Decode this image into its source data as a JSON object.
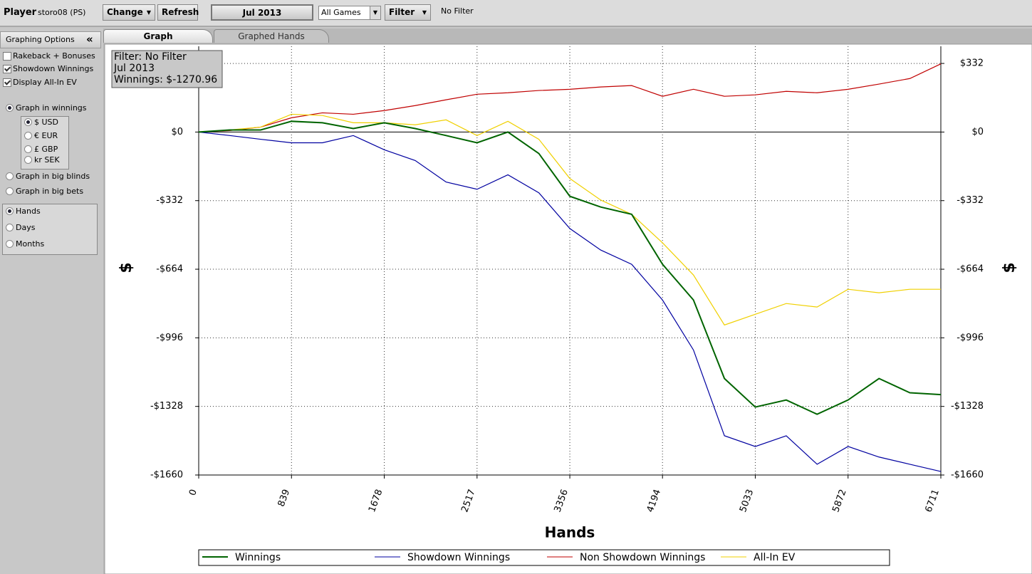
{
  "toolbar": {
    "player_label": "Player",
    "player": "storo08 (PS)",
    "buttons": [
      "Change",
      "Refresh"
    ],
    "date": "Jul 2013",
    "games": "All Games",
    "filter_button": "Filter",
    "filter": "No Filter"
  },
  "sidebar": {
    "title": "Graphing Options",
    "checkboxes": [
      {
        "label": "Rakeback + Bonuses",
        "checked": false
      },
      {
        "label": "Showdown Winnings",
        "checked": true
      },
      {
        "label": "Display All-In EV",
        "checked": true
      }
    ],
    "units": [
      {
        "label": "Graph in winnings",
        "selected": true
      },
      {
        "label": "Graph in big blinds",
        "selected": false
      },
      {
        "label": "Graph in big bets",
        "selected": false
      }
    ],
    "currencies": [
      {
        "label": "$ USD",
        "selected": true
      },
      {
        "label": "€ EUR",
        "selected": false
      },
      {
        "label": "£ GBP",
        "selected": false
      },
      {
        "label": "kr SEK",
        "selected": false
      }
    ],
    "x_modes": [
      {
        "label": "Hands",
        "selected": true
      },
      {
        "label": "Days",
        "selected": false
      },
      {
        "label": "Months",
        "selected": false
      }
    ]
  },
  "tabs": [
    {
      "label": "Graph",
      "active": true
    },
    {
      "label": "Graphed Hands",
      "active": false
    }
  ],
  "chart_data": {
    "type": "line",
    "x_label": "Hands",
    "y_label": "$",
    "info_box": [
      "Filter: No Filter",
      "Jul 2013",
      "Winnings: $-1270.96"
    ],
    "x": [
      0,
      280,
      560,
      839,
      1119,
      1398,
      1678,
      1958,
      2237,
      2517,
      2796,
      3076,
      3356,
      3635,
      3915,
      4194,
      4474,
      4754,
      5033,
      5313,
      5592,
      5872,
      6152,
      6431,
      6711
    ],
    "series": [
      {
        "name": "Winnings",
        "color": "#006400",
        "values": [
          0,
          10,
          10,
          52,
          45,
          17,
          45,
          17,
          -17,
          -52,
          0,
          -104,
          -311,
          -363,
          -398,
          -640,
          -813,
          -1193,
          -1331,
          -1297,
          -1366,
          -1297,
          -1193,
          -1262,
          -1271
        ]
      },
      {
        "name": "Showdown Winnings",
        "color": "#0000a0",
        "values": [
          0,
          -17,
          -35,
          -52,
          -52,
          -17,
          -86,
          -138,
          -242,
          -277,
          -207,
          -294,
          -467,
          -571,
          -640,
          -813,
          -1055,
          -1470,
          -1522,
          -1470,
          -1608,
          -1522,
          -1573,
          -1608,
          -1643
        ]
      },
      {
        "name": "Non Showdown Winnings",
        "color": "#c00000",
        "values": [
          0,
          7,
          24,
          69,
          93,
          86,
          104,
          128,
          156,
          183,
          190,
          201,
          207,
          218,
          225,
          173,
          207,
          173,
          180,
          197,
          190,
          207,
          232,
          259,
          330
        ]
      },
      {
        "name": "All-In EV",
        "color": "#f0d000",
        "values": [
          0,
          10,
          24,
          86,
          80,
          45,
          45,
          35,
          59,
          -17,
          52,
          -35,
          -225,
          -329,
          -398,
          -536,
          -692,
          -934,
          -882,
          -830,
          -847,
          -761,
          -778,
          -761,
          -761
        ]
      }
    ],
    "xlim": [
      0,
      6711
    ],
    "ylim": [
      -1660,
      415
    ],
    "xticks": [
      0,
      839,
      1678,
      2517,
      3356,
      4194,
      5033,
      5872,
      6711
    ],
    "yticks": [
      {
        "value": 332,
        "label": "$332"
      },
      {
        "value": 0,
        "label": "$0"
      },
      {
        "value": -332,
        "label": "-$332"
      },
      {
        "value": -664,
        "label": "-$664"
      },
      {
        "value": -996,
        "label": "-$996"
      },
      {
        "value": -1328,
        "label": "-$1328"
      },
      {
        "value": -1660,
        "label": "-$1660"
      }
    ],
    "grid": true
  }
}
